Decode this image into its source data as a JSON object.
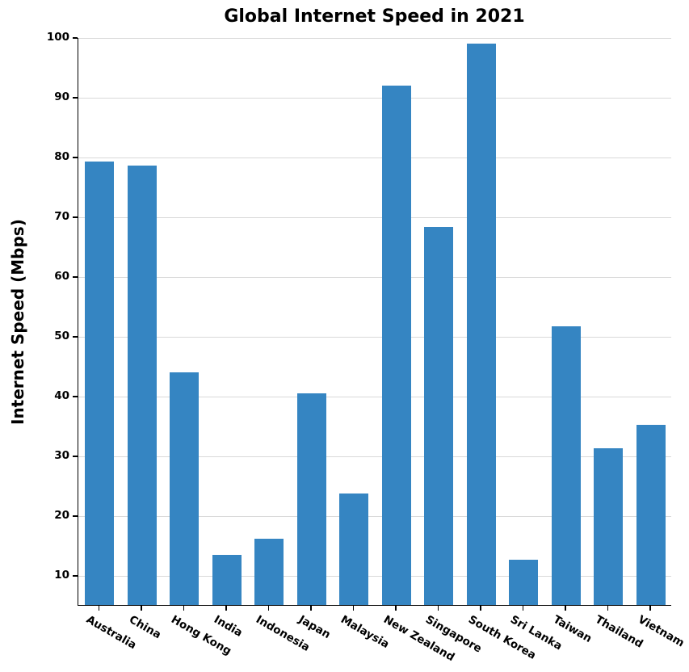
{
  "chart_data": {
    "type": "bar",
    "title": "Global Internet Speed in 2021",
    "xlabel": "",
    "ylabel": "Internet Speed (Mbps)",
    "categories": [
      "Australia",
      "China",
      "Hong Kong",
      "India",
      "Indonesia",
      "Japan",
      "Malaysia",
      "New Zealand",
      "Singapore",
      "South Korea",
      "Sri Lanka",
      "Taiwan",
      "Thailand",
      "Vietnam"
    ],
    "values": [
      79.3,
      78.7,
      44.0,
      13.5,
      16.2,
      40.5,
      23.8,
      92.0,
      68.4,
      99.0,
      12.7,
      51.7,
      31.3,
      35.3
    ],
    "ylim": [
      5,
      100
    ],
    "yticks": [
      10,
      20,
      30,
      40,
      50,
      60,
      70,
      80,
      90,
      100
    ],
    "grid": "horizontal",
    "legend": "none",
    "bar_color": "#3585c2",
    "grid_color": "#d9d9d9",
    "axis_color": "#000000",
    "background_color": "#ffffff"
  }
}
